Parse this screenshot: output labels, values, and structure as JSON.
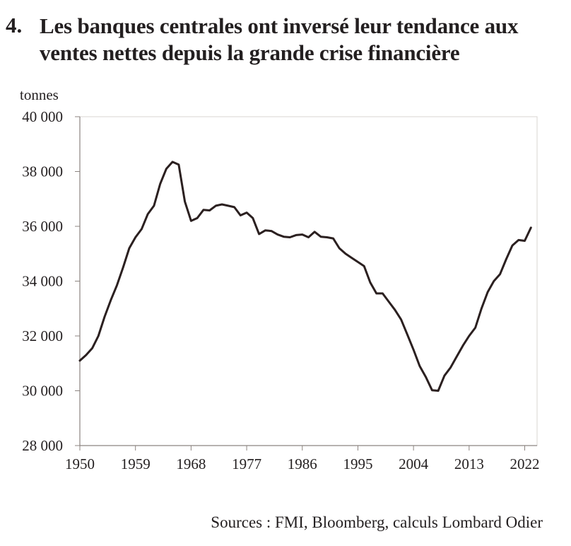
{
  "header": {
    "number": "4.",
    "title": "Les banques centrales ont inversé leur tendance aux ventes nettes depuis la grande crise financière"
  },
  "footer": {
    "source": "Sources : FMI, Bloomberg, calculs Lombard Odier"
  },
  "colors": {
    "line": "#2b2020",
    "frame": "#d9d4d0",
    "text": "#231f20"
  },
  "chart_data": {
    "type": "line",
    "title": "Les banques centrales ont inversé leur tendance aux ventes nettes depuis la grande crise financière",
    "xlabel": "",
    "ylabel": "tonnes",
    "xlim": [
      1950,
      2024
    ],
    "ylim": [
      28000,
      40000
    ],
    "x_ticks": [
      1950,
      1959,
      1968,
      1977,
      1986,
      1995,
      2004,
      2013,
      2022
    ],
    "x_tick_labels": [
      "1950",
      "1959",
      "1968",
      "1977",
      "1986",
      "1995",
      "2004",
      "2013",
      "2022"
    ],
    "y_ticks": [
      28000,
      30000,
      32000,
      34000,
      36000,
      38000,
      40000
    ],
    "y_tick_labels": [
      "28 000",
      "30 000",
      "32 000",
      "34 000",
      "36 000",
      "38 000",
      "40 000"
    ],
    "grid": false,
    "series": [
      {
        "x": [
          1950,
          1951,
          1952,
          1953,
          1954,
          1955,
          1956,
          1957,
          1958,
          1959,
          1960,
          1961,
          1962,
          1963,
          1964,
          1965,
          1966,
          1967,
          1968,
          1969,
          1970,
          1971,
          1972,
          1973,
          1974,
          1975,
          1976,
          1977,
          1978,
          1979,
          1980,
          1981,
          1982,
          1983,
          1984,
          1985,
          1986,
          1987,
          1988,
          1989,
          1990,
          1991,
          1992,
          1993,
          1994,
          1995,
          1996,
          1997,
          1998,
          1999,
          2000,
          2001,
          2002,
          2003,
          2004,
          2005,
          2006,
          2007,
          2008,
          2009,
          2010,
          2011,
          2012,
          2013,
          2014,
          2015,
          2016,
          2017,
          2018,
          2019,
          2020,
          2021,
          2022,
          2023
        ],
        "values": [
          31100,
          31300,
          31550,
          32000,
          32700,
          33300,
          33850,
          34500,
          35200,
          35600,
          35900,
          36450,
          36750,
          37550,
          38100,
          38350,
          38250,
          36900,
          36200,
          36300,
          36600,
          36580,
          36750,
          36800,
          36750,
          36700,
          36400,
          36500,
          36300,
          35720,
          35850,
          35830,
          35700,
          35620,
          35600,
          35680,
          35700,
          35600,
          35800,
          35620,
          35600,
          35560,
          35200,
          35000,
          34850,
          34700,
          34550,
          33950,
          33550,
          33550,
          33250,
          32950,
          32600,
          32050,
          31500,
          30900,
          30500,
          30020,
          30000,
          30550,
          30850,
          31250,
          31650,
          32000,
          32300,
          33000,
          33600,
          34000,
          34250,
          34800,
          35300,
          35500,
          35470,
          35950
        ]
      }
    ]
  }
}
